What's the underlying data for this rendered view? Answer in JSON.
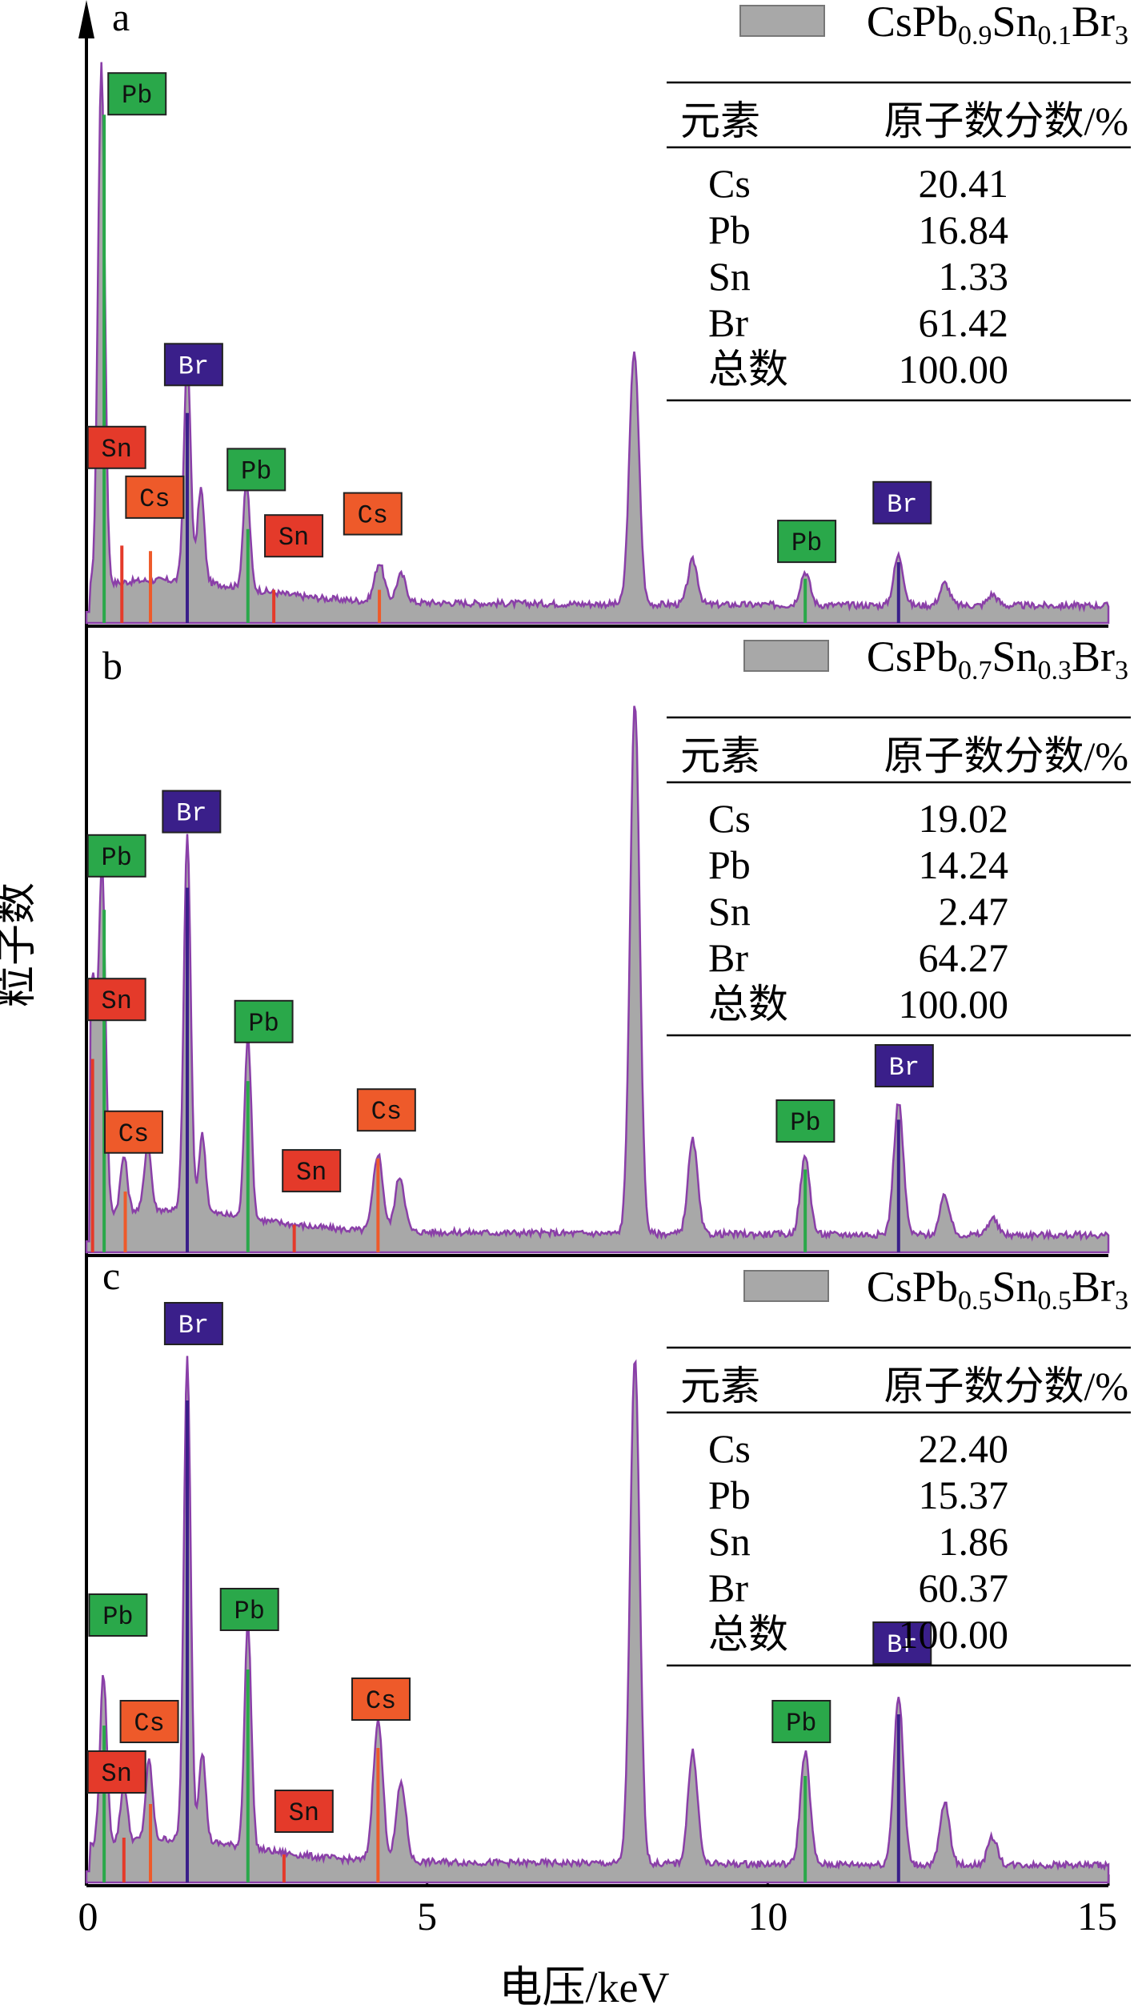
{
  "axes": {
    "x_label": "电压/keV",
    "y_label": "粒子数",
    "x_min": 0,
    "x_max": 15,
    "x_ticks": [
      "0",
      "5",
      "10",
      "15"
    ],
    "x_tick_values": [
      0,
      5,
      10,
      15
    ]
  },
  "colors": {
    "spectrum_fill": "#a8a8a8",
    "spectrum_outline": "#8a3fa8",
    "Pb": "#2aa84a",
    "Br": "#3a1f8a",
    "Cs": "#ee5a2a",
    "Sn": "#e43a2a"
  },
  "chart_data": [
    {
      "type": "area",
      "panel": "a",
      "series": [
        {
          "name": "CsPb0.9Sn0.1Br3",
          "legend_base": "CsPb",
          "legend_sub1": "0.9",
          "legend_mid": "Sn",
          "legend_sub2": "0.1",
          "legend_end": "Br",
          "legend_sub3": "3"
        }
      ],
      "table": {
        "headers": [
          "元素",
          "原子数分数/%"
        ],
        "rows": [
          [
            "Cs",
            "20.41"
          ],
          [
            "Pb",
            "16.84"
          ],
          [
            "Sn",
            "1.33"
          ],
          [
            "Br",
            "61.42"
          ],
          [
            "总数",
            "100.00"
          ]
        ]
      },
      "peaks": [
        [
          0.22,
          0.94
        ],
        [
          1.48,
          0.4
        ],
        [
          1.68,
          0.17
        ],
        [
          2.35,
          0.19
        ],
        [
          4.3,
          0.07
        ],
        [
          4.62,
          0.05
        ],
        [
          8.04,
          0.46
        ],
        [
          8.9,
          0.08
        ],
        [
          10.55,
          0.06
        ],
        [
          11.92,
          0.09
        ],
        [
          12.6,
          0.04
        ],
        [
          13.3,
          0.02
        ]
      ],
      "markers": [
        {
          "el": "Pb",
          "x": 0.26,
          "h": 0.92,
          "label": "Pb",
          "lx": 0.32,
          "ly": 0.92
        },
        {
          "el": "Sn",
          "x": 0.52,
          "h": 0.14,
          "label": "Sn",
          "lx": 0.02,
          "ly": 0.28
        },
        {
          "el": "Cs",
          "x": 0.94,
          "h": 0.13,
          "label": "Cs",
          "lx": 0.58,
          "ly": 0.19
        },
        {
          "el": "Br",
          "x": 1.48,
          "h": 0.38,
          "label": "Br",
          "lx": 1.15,
          "ly": 0.43
        },
        {
          "el": "Pb",
          "x": 2.37,
          "h": 0.17,
          "label": "Pb",
          "lx": 2.07,
          "ly": 0.24
        },
        {
          "el": "Sn",
          "x": 2.75,
          "h": 0.06,
          "label": "Sn",
          "lx": 2.62,
          "ly": 0.12
        },
        {
          "el": "Cs",
          "x": 4.3,
          "h": 0.06,
          "label": "Cs",
          "lx": 3.78,
          "ly": 0.16
        },
        {
          "el": "Pb",
          "x": 10.55,
          "h": 0.08,
          "label": "Pb",
          "lx": 10.15,
          "ly": 0.11
        },
        {
          "el": "Br",
          "x": 11.92,
          "h": 0.11,
          "label": "Br",
          "lx": 11.55,
          "ly": 0.18
        }
      ]
    },
    {
      "type": "area",
      "panel": "b",
      "series": [
        {
          "name": "CsPb0.7Sn0.3Br3",
          "legend_base": "CsPb",
          "legend_sub1": "0.7",
          "legend_mid": "Sn",
          "legend_sub2": "0.3",
          "legend_end": "Br",
          "legend_sub3": "3"
        }
      ],
      "table": {
        "headers": [
          "元素",
          "原子数分数/%"
        ],
        "rows": [
          [
            "Cs",
            "19.02"
          ],
          [
            "Pb",
            "14.24"
          ],
          [
            "Sn",
            "2.47"
          ],
          [
            "Br",
            "64.27"
          ],
          [
            "总数",
            "100.00"
          ]
        ]
      },
      "peaks": [
        [
          0.09,
          0.43
        ],
        [
          0.23,
          0.63
        ],
        [
          0.55,
          0.1
        ],
        [
          0.9,
          0.12
        ],
        [
          1.48,
          0.68
        ],
        [
          1.7,
          0.14
        ],
        [
          2.37,
          0.33
        ],
        [
          4.28,
          0.14
        ],
        [
          4.6,
          0.1
        ],
        [
          8.05,
          0.96
        ],
        [
          8.9,
          0.17
        ],
        [
          10.55,
          0.14
        ],
        [
          11.92,
          0.24
        ],
        [
          12.6,
          0.07
        ],
        [
          13.3,
          0.03
        ]
      ],
      "markers": [
        {
          "el": "Pb",
          "x": 0.26,
          "h": 0.62,
          "label": "Pb",
          "lx": 0.02,
          "ly": 0.68
        },
        {
          "el": "Sn",
          "x": 0.09,
          "h": 0.35,
          "label": "Sn",
          "lx": 0.02,
          "ly": 0.42
        },
        {
          "el": "Cs",
          "x": 0.57,
          "h": 0.11,
          "label": "Cs",
          "lx": 0.27,
          "ly": 0.18
        },
        {
          "el": "Br",
          "x": 1.48,
          "h": 0.66,
          "label": "Br",
          "lx": 1.12,
          "ly": 0.76
        },
        {
          "el": "Pb",
          "x": 2.37,
          "h": 0.31,
          "label": "Pb",
          "lx": 2.18,
          "ly": 0.38
        },
        {
          "el": "Sn",
          "x": 3.05,
          "h": 0.05,
          "label": "Sn",
          "lx": 2.88,
          "ly": 0.11
        },
        {
          "el": "Cs",
          "x": 4.28,
          "h": 0.17,
          "label": "Cs",
          "lx": 3.98,
          "ly": 0.22
        },
        {
          "el": "Pb",
          "x": 10.55,
          "h": 0.15,
          "label": "Pb",
          "lx": 10.13,
          "ly": 0.2
        },
        {
          "el": "Br",
          "x": 11.92,
          "h": 0.24,
          "label": "Br",
          "lx": 11.58,
          "ly": 0.3
        }
      ]
    },
    {
      "type": "area",
      "panel": "c",
      "series": [
        {
          "name": "CsPb0.5Sn0.5Br3",
          "legend_base": "CsPb",
          "legend_sub1": "0.5",
          "legend_mid": "Sn",
          "legend_sub2": "0.5",
          "legend_end": "Br",
          "legend_sub3": "3"
        }
      ],
      "table": {
        "headers": [
          "元素",
          "原子数分数/%"
        ],
        "rows": [
          [
            "Cs",
            "22.40"
          ],
          [
            "Pb",
            "15.37"
          ],
          [
            "Sn",
            "1.86"
          ],
          [
            "Br",
            "60.37"
          ],
          [
            "总数",
            "100.00"
          ]
        ]
      },
      "peaks": [
        [
          0.25,
          0.3
        ],
        [
          0.55,
          0.1
        ],
        [
          0.92,
          0.14
        ],
        [
          1.48,
          0.86
        ],
        [
          1.7,
          0.16
        ],
        [
          2.37,
          0.4
        ],
        [
          4.28,
          0.25
        ],
        [
          4.62,
          0.14
        ],
        [
          8.05,
          0.9
        ],
        [
          8.9,
          0.2
        ],
        [
          10.55,
          0.2
        ],
        [
          11.92,
          0.3
        ],
        [
          12.6,
          0.11
        ],
        [
          13.3,
          0.05
        ]
      ],
      "markers": [
        {
          "el": "Pb",
          "x": 0.26,
          "h": 0.28,
          "label": "Pb",
          "lx": 0.04,
          "ly": 0.44
        },
        {
          "el": "Sn",
          "x": 0.55,
          "h": 0.08,
          "label": "Sn",
          "lx": 0.02,
          "ly": 0.16
        },
        {
          "el": "Cs",
          "x": 0.94,
          "h": 0.14,
          "label": "Cs",
          "lx": 0.5,
          "ly": 0.25
        },
        {
          "el": "Br",
          "x": 1.48,
          "h": 0.86,
          "label": "Br",
          "lx": 1.15,
          "ly": 0.96
        },
        {
          "el": "Pb",
          "x": 2.37,
          "h": 0.38,
          "label": "Pb",
          "lx": 1.97,
          "ly": 0.45
        },
        {
          "el": "Sn",
          "x": 2.9,
          "h": 0.05,
          "label": "Sn",
          "lx": 2.77,
          "ly": 0.09
        },
        {
          "el": "Cs",
          "x": 4.28,
          "h": 0.24,
          "label": "Cs",
          "lx": 3.9,
          "ly": 0.29
        },
        {
          "el": "Pb",
          "x": 10.55,
          "h": 0.19,
          "label": "Pb",
          "lx": 10.07,
          "ly": 0.25
        },
        {
          "el": "Br",
          "x": 11.92,
          "h": 0.3,
          "label": "Br",
          "lx": 11.55,
          "ly": 0.39
        }
      ]
    }
  ]
}
